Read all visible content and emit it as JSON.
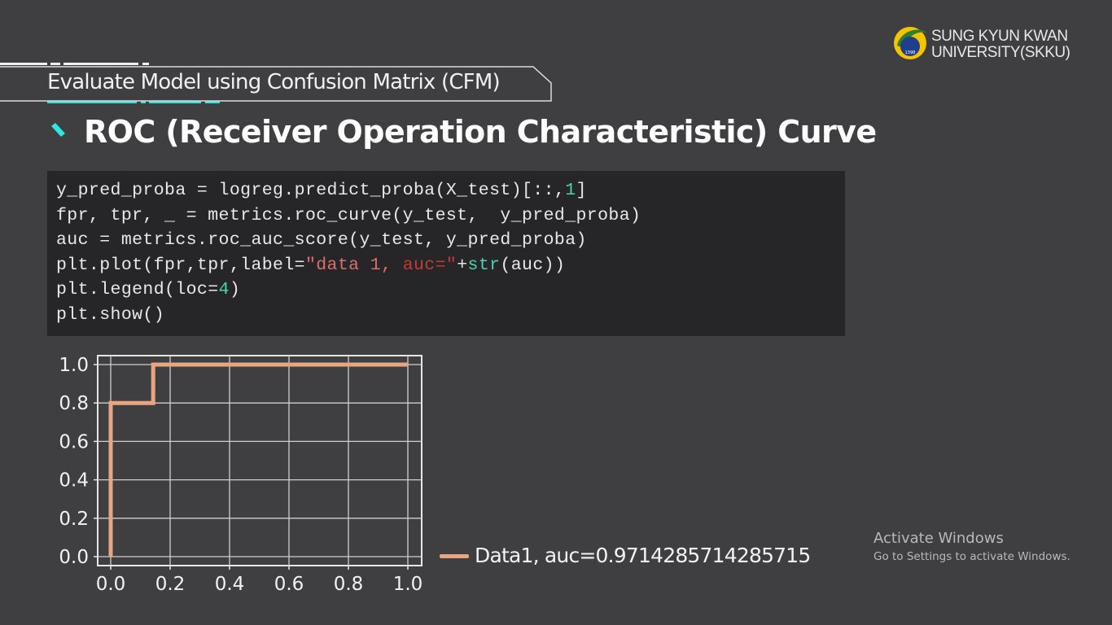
{
  "logo": {
    "line1": "SUNG KYUN KWAN",
    "line2": "UNIVERSITY(SKKU)",
    "year": "1398"
  },
  "section": {
    "title": "Evaluate Model using Confusion Matrix (CFM)"
  },
  "heading": "ROC (Receiver Operation Characteristic) Curve",
  "code": {
    "line1": "y_pred_proba = logreg.predict_proba(X_test)[::,",
    "line1_num": "1",
    "line1_end": "]",
    "line2": "fpr, tpr, _ = metrics.roc_curve(y_test,  y_pred_proba)",
    "line3": "auc = metrics.roc_auc_score(y_test, y_pred_proba)",
    "line4_a": "plt.plot(fpr,tpr,label=",
    "line4_str1": "\"data 1, ",
    "line4_str2": "auc=\"",
    "line4_b": "+",
    "line4_fn": "str",
    "line4_c": "(auc))",
    "line5_a": "plt.legend(loc=",
    "line5_num": "4",
    "line5_b": ")",
    "line6": "plt.show()"
  },
  "chart_data": {
    "type": "line",
    "series": [
      {
        "name": "Data1, auc=0.9714285714285715",
        "x": [
          0.0,
          0.0,
          0.0,
          0.143,
          0.143,
          1.0
        ],
        "y": [
          0.0,
          0.2,
          0.8,
          0.8,
          1.0,
          1.0
        ]
      }
    ],
    "xlim": [
      0.0,
      1.0
    ],
    "ylim": [
      0.0,
      1.0
    ],
    "xticks": [
      "0.0",
      "0.2",
      "0.4",
      "0.6",
      "0.8",
      "1.0"
    ],
    "yticks": [
      "0.0",
      "0.2",
      "0.4",
      "0.6",
      "0.8",
      "1.0"
    ],
    "grid": true,
    "legend_placement": "lower right (outside)",
    "line_color": "#e8a582"
  },
  "watermark": {
    "title": "Activate Windows",
    "subtitle": "Go to Settings to activate Windows."
  }
}
